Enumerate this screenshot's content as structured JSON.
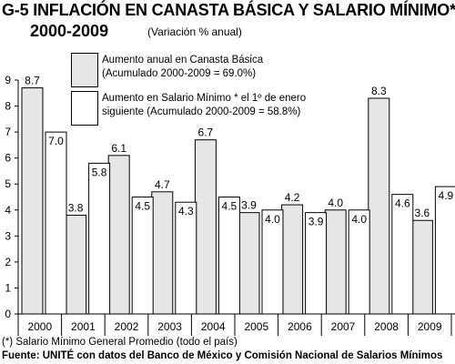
{
  "header": {
    "title": "G-5 INFLACIÓN EN CANASTA BÁSICA Y SALARIO MÍNIMO*",
    "title_years": "2000-2009",
    "subtitle": "(Variación % anual)"
  },
  "legend": [
    {
      "line1": "Aumento anual en Canasta Básica",
      "line2": "(Acumulado 2000-2009 = 69.0%)",
      "fill": "#e6e6e6"
    },
    {
      "line1": "Aumento en Salario Mínimo * el 1º de enero",
      "line2": "siguiente (Acumulado 2000-2009 = 58.8%)",
      "fill": "#ffffff"
    }
  ],
  "footnote": "(*) Salario Mínimo General Promedio (todo el país)",
  "source": "Fuente: UNITÉ con datos del Banco de México y Comisión Nacional de Salarios Mínimos",
  "chart_data": {
    "type": "bar",
    "categories": [
      "2000",
      "2001",
      "2002",
      "2003",
      "2004",
      "2005",
      "2006",
      "2007",
      "2008",
      "2009"
    ],
    "series": [
      {
        "name": "Aumento anual en Canasta Básica (Acumulado 2000-2009 = 69.0%)",
        "values": [
          8.7,
          3.8,
          6.1,
          4.7,
          6.7,
          3.9,
          4.2,
          4.0,
          8.3,
          3.6
        ],
        "color": "#e6e6e6"
      },
      {
        "name": "Aumento en Salario Mínimo * el 1º de enero siguiente (Acumulado 2000-2009 = 58.8%)",
        "values": [
          7.0,
          5.8,
          4.5,
          4.3,
          4.5,
          4.0,
          3.9,
          4.0,
          4.6,
          4.9
        ],
        "color": "#ffffff"
      }
    ],
    "value_labels": [
      [
        "8.7",
        "3.8",
        "6.1",
        "4.7",
        "6.7",
        "3.9",
        "4.2",
        "4.0",
        "8.3",
        "3.6"
      ],
      [
        "7.0",
        "5.8",
        "4.5",
        "4.3",
        "4.5",
        "4.0",
        "3.9",
        "4.0",
        "4.6",
        "4.9"
      ]
    ],
    "ylim": [
      0,
      9
    ],
    "yticks": [
      "0",
      "1",
      "2",
      "3",
      "4",
      "5",
      "6",
      "7",
      "8",
      "9"
    ],
    "grid": false,
    "legend_position": "top-left"
  }
}
